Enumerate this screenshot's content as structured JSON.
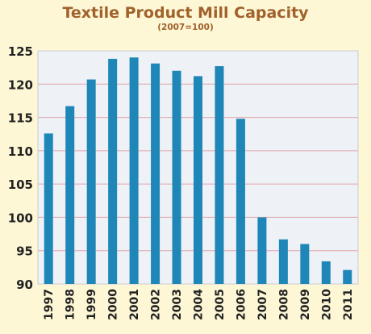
{
  "chart_data": {
    "type": "bar",
    "title": "Textile Product Mill Capacity",
    "subtitle": "(2007=100)",
    "xlabel": "",
    "ylabel": "",
    "categories": [
      "1997",
      "1998",
      "1999",
      "2000",
      "2001",
      "2002",
      "2003",
      "2004",
      "2005",
      "2006",
      "2007",
      "2008",
      "2009",
      "2010",
      "2011"
    ],
    "values": [
      112.6,
      116.7,
      120.7,
      123.8,
      124.0,
      123.1,
      122.0,
      121.2,
      122.7,
      114.8,
      100.0,
      96.7,
      96.0,
      93.4,
      92.1
    ],
    "ylim": [
      90,
      125
    ],
    "yticks": [
      "90",
      "95",
      "100",
      "105",
      "110",
      "115",
      "120",
      "125"
    ],
    "grid": true,
    "colors": {
      "bar": "#1f86b8",
      "plot_bg": "#eef1f5",
      "grid": "#e0a8ad",
      "frame": "#c9cdd4",
      "title": "#a0622a",
      "page_bg": "#fdf7d6"
    }
  }
}
